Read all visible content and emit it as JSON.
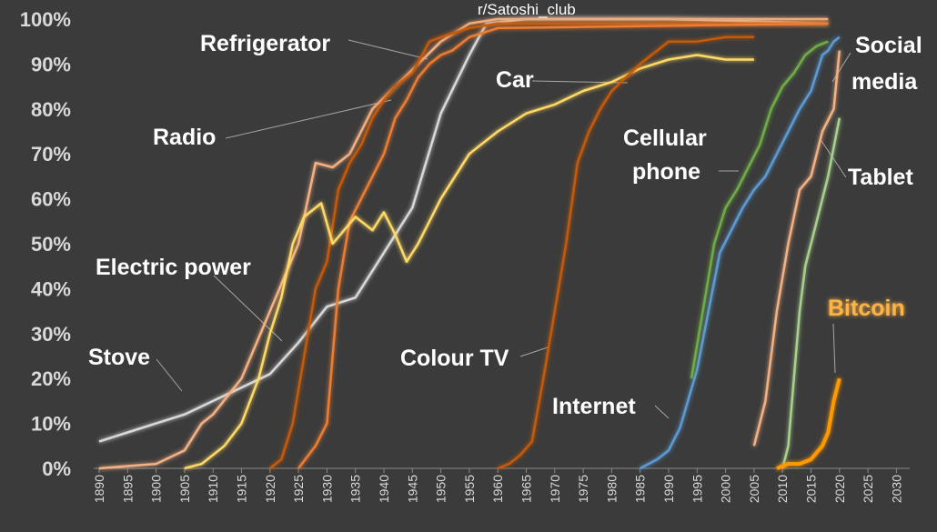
{
  "watermark": "r/Satoshi_club",
  "chart_data": {
    "type": "line",
    "title": "",
    "xlabel": "",
    "ylabel": "",
    "xlim": [
      1890,
      2032
    ],
    "ylim": [
      0,
      100
    ],
    "xticks": [
      "1890",
      "1895",
      "1900",
      "1905",
      "1910",
      "1915",
      "1920",
      "1925",
      "1930",
      "1935",
      "1940",
      "1945",
      "1950",
      "1955",
      "1960",
      "1965",
      "1970",
      "1975",
      "1980",
      "1985",
      "1990",
      "1995",
      "2000",
      "2005",
      "2010",
      "2015",
      "2020",
      "2025",
      "2030"
    ],
    "yticks": [
      "0%",
      "10%",
      "20%",
      "30%",
      "40%",
      "50%",
      "60%",
      "70%",
      "80%",
      "90%",
      "100%"
    ],
    "grid": false,
    "series": [
      {
        "name": "Stove",
        "color": "#d9d9d9",
        "points": [
          [
            1890,
            6
          ],
          [
            1895,
            8
          ],
          [
            1900,
            10
          ],
          [
            1905,
            12
          ],
          [
            1910,
            15
          ],
          [
            1915,
            18
          ],
          [
            1920,
            21
          ],
          [
            1925,
            28
          ],
          [
            1930,
            36
          ],
          [
            1935,
            38
          ],
          [
            1940,
            48
          ],
          [
            1945,
            58
          ],
          [
            1950,
            79
          ],
          [
            1955,
            92
          ],
          [
            1958,
            99
          ],
          [
            1965,
            100
          ],
          [
            1990,
            100
          ],
          [
            2018,
            99
          ]
        ]
      },
      {
        "name": "Electric power",
        "color": "#f4b183",
        "points": [
          [
            1890,
            0
          ],
          [
            1900,
            1
          ],
          [
            1905,
            4
          ],
          [
            1908,
            10
          ],
          [
            1910,
            12
          ],
          [
            1915,
            20
          ],
          [
            1920,
            35
          ],
          [
            1925,
            50
          ],
          [
            1928,
            68
          ],
          [
            1931,
            67
          ],
          [
            1934,
            70
          ],
          [
            1938,
            80
          ],
          [
            1942,
            85
          ],
          [
            1946,
            90
          ],
          [
            1950,
            95
          ],
          [
            1955,
            99
          ],
          [
            1960,
            100
          ],
          [
            2018,
            100
          ]
        ]
      },
      {
        "name": "Radio",
        "color": "#c55a11",
        "points": [
          [
            1920,
            0
          ],
          [
            1922,
            2
          ],
          [
            1924,
            10
          ],
          [
            1926,
            25
          ],
          [
            1928,
            40
          ],
          [
            1930,
            46
          ],
          [
            1932,
            62
          ],
          [
            1934,
            68
          ],
          [
            1936,
            72
          ],
          [
            1938,
            78
          ],
          [
            1940,
            82
          ],
          [
            1942,
            85
          ],
          [
            1945,
            88
          ],
          [
            1948,
            95
          ],
          [
            1950,
            96
          ],
          [
            1955,
            98
          ],
          [
            1960,
            99
          ],
          [
            2018,
            99
          ]
        ]
      },
      {
        "name": "Refrigerator",
        "color": "#ed7d31",
        "points": [
          [
            1925,
            0
          ],
          [
            1928,
            5
          ],
          [
            1930,
            10
          ],
          [
            1932,
            40
          ],
          [
            1934,
            55
          ],
          [
            1936,
            60
          ],
          [
            1938,
            65
          ],
          [
            1940,
            70
          ],
          [
            1942,
            78
          ],
          [
            1944,
            82
          ],
          [
            1946,
            87
          ],
          [
            1948,
            90
          ],
          [
            1950,
            92
          ],
          [
            1952,
            93
          ],
          [
            1955,
            96
          ],
          [
            1960,
            98
          ],
          [
            2018,
            99
          ]
        ]
      },
      {
        "name": "Car",
        "color": "#ffd966",
        "points": [
          [
            1905,
            0
          ],
          [
            1908,
            1
          ],
          [
            1912,
            5
          ],
          [
            1915,
            10
          ],
          [
            1918,
            20
          ],
          [
            1920,
            30
          ],
          [
            1922,
            38
          ],
          [
            1924,
            50
          ],
          [
            1926,
            56
          ],
          [
            1929,
            59
          ],
          [
            1931,
            50
          ],
          [
            1933,
            53
          ],
          [
            1935,
            56
          ],
          [
            1938,
            53
          ],
          [
            1940,
            57
          ],
          [
            1942,
            52
          ],
          [
            1944,
            46
          ],
          [
            1946,
            50
          ],
          [
            1950,
            60
          ],
          [
            1955,
            70
          ],
          [
            1960,
            75
          ],
          [
            1965,
            79
          ],
          [
            1970,
            81
          ],
          [
            1975,
            84
          ],
          [
            1980,
            86
          ],
          [
            1985,
            89
          ],
          [
            1990,
            91
          ],
          [
            1995,
            92
          ],
          [
            2000,
            91
          ],
          [
            2005,
            91
          ]
        ]
      },
      {
        "name": "Colour TV",
        "color": "#c55a11",
        "points": [
          [
            1960,
            0
          ],
          [
            1962,
            1
          ],
          [
            1964,
            3
          ],
          [
            1966,
            6
          ],
          [
            1968,
            20
          ],
          [
            1970,
            35
          ],
          [
            1972,
            50
          ],
          [
            1974,
            68
          ],
          [
            1976,
            75
          ],
          [
            1978,
            80
          ],
          [
            1980,
            84
          ],
          [
            1985,
            90
          ],
          [
            1990,
            95
          ],
          [
            1995,
            95
          ],
          [
            2000,
            96
          ],
          [
            2005,
            96
          ]
        ]
      },
      {
        "name": "Internet",
        "color": "#5b9bd5",
        "points": [
          [
            1985,
            0
          ],
          [
            1988,
            2
          ],
          [
            1990,
            4
          ],
          [
            1992,
            9
          ],
          [
            1995,
            22
          ],
          [
            1997,
            35
          ],
          [
            1999,
            48
          ],
          [
            2001,
            53
          ],
          [
            2003,
            58
          ],
          [
            2005,
            62
          ],
          [
            2007,
            65
          ],
          [
            2009,
            70
          ],
          [
            2011,
            75
          ],
          [
            2013,
            80
          ],
          [
            2015,
            84
          ],
          [
            2017,
            92
          ],
          [
            2018,
            93
          ],
          [
            2019,
            95
          ],
          [
            2020,
            96
          ]
        ]
      },
      {
        "name": "Cellular phone",
        "color": "#70ad47",
        "points": [
          [
            1994,
            20
          ],
          [
            1996,
            35
          ],
          [
            1998,
            50
          ],
          [
            2000,
            58
          ],
          [
            2002,
            62
          ],
          [
            2004,
            67
          ],
          [
            2006,
            72
          ],
          [
            2008,
            80
          ],
          [
            2010,
            85
          ],
          [
            2012,
            88
          ],
          [
            2014,
            92
          ],
          [
            2016,
            94
          ],
          [
            2018,
            95
          ]
        ]
      },
      {
        "name": "Social media",
        "color": "#f4b183",
        "points": [
          [
            2005,
            5
          ],
          [
            2007,
            15
          ],
          [
            2009,
            35
          ],
          [
            2011,
            50
          ],
          [
            2013,
            62
          ],
          [
            2015,
            65
          ],
          [
            2017,
            75
          ],
          [
            2019,
            80
          ],
          [
            2020,
            93
          ]
        ]
      },
      {
        "name": "Tablet",
        "color": "#a9d18e",
        "points": [
          [
            2010,
            0
          ],
          [
            2011,
            5
          ],
          [
            2012,
            20
          ],
          [
            2013,
            35
          ],
          [
            2014,
            45
          ],
          [
            2016,
            55
          ],
          [
            2018,
            65
          ],
          [
            2020,
            78
          ]
        ]
      },
      {
        "name": "Bitcoin",
        "color": "#ff9900",
        "points": [
          [
            2009,
            0
          ],
          [
            2011,
            1
          ],
          [
            2013,
            1
          ],
          [
            2015,
            2
          ],
          [
            2017,
            5
          ],
          [
            2018,
            8
          ],
          [
            2019,
            15
          ],
          [
            2020,
            20
          ]
        ]
      }
    ],
    "annotations": [
      "Refrigerator",
      "Radio",
      "Car",
      "Electric power",
      "Stove",
      "Colour TV",
      "Cellular phone",
      "Internet",
      "Social media",
      "Tablet",
      "Bitcoin"
    ]
  },
  "labels": {
    "refrigerator": "Refrigerator",
    "radio": "Radio",
    "car": "Car",
    "electric_power": "Electric power",
    "stove": "Stove",
    "colour_tv": "Colour TV",
    "cellular_1": "Cellular",
    "cellular_2": "phone",
    "internet": "Internet",
    "social_1": "Social",
    "social_2": "media",
    "tablet": "Tablet",
    "bitcoin": "Bitcoin"
  }
}
